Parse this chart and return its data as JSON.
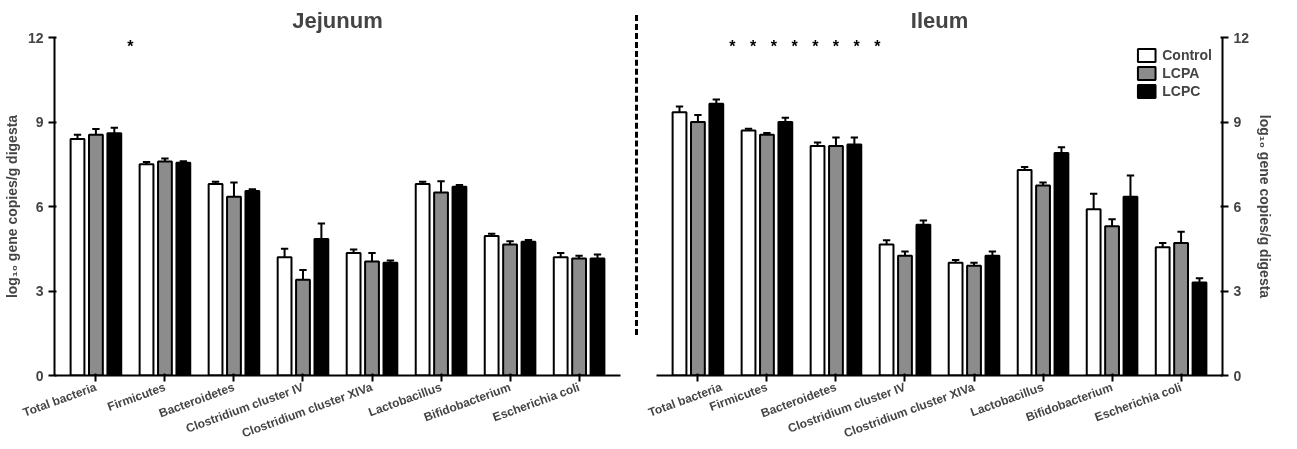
{
  "chart_data": [
    {
      "type": "bar",
      "title": "Jejunum",
      "ylabel": "log₁₀ gene copies/g digesta",
      "categories": [
        "Total bacteria",
        "Firmicutes",
        "Bacteroidetes",
        "Clostridium cluster IV",
        "Clostridium cluster XIVa",
        "Lactobacillus",
        "Bifidobacterium",
        "Escherichia coli"
      ],
      "series": [
        {
          "color": "#ffffff",
          "values": [
            8.4,
            7.5,
            6.8,
            4.2,
            4.35,
            6.8,
            4.95,
            4.2
          ],
          "errors": [
            0.15,
            0.08,
            0.08,
            0.3,
            0.12,
            0.08,
            0.08,
            0.15
          ]
        },
        {
          "color": "#8c8c8c",
          "values": [
            8.55,
            7.6,
            6.35,
            3.4,
            4.05,
            6.5,
            4.65,
            4.15
          ],
          "errors": [
            0.2,
            0.1,
            0.5,
            0.35,
            0.3,
            0.4,
            0.12,
            0.1
          ]
        },
        {
          "color": "#000000",
          "values": [
            8.6,
            7.55,
            6.55,
            4.85,
            4.0,
            6.7,
            4.75,
            4.15
          ],
          "errors": [
            0.2,
            0.06,
            0.06,
            0.55,
            0.08,
            0.06,
            0.06,
            0.15
          ]
        }
      ],
      "ylim": [
        0,
        12
      ],
      "yticks": [
        0,
        3,
        6,
        9,
        12
      ],
      "annotations": [
        "*"
      ]
    },
    {
      "type": "bar",
      "title": "Ileum",
      "y2label": "log₁₀ gene copies/g digesta",
      "categories": [
        "Total bacteria",
        "Firmicutes",
        "Bacteroidetes",
        "Clostridium cluster IV",
        "Clostridium cluster XIVa",
        "Lactobacillus",
        "Bifidobacterium",
        "Escherichia coli"
      ],
      "series": [
        {
          "name": "Control",
          "color": "#ffffff",
          "axis": "y2",
          "values": [
            9.35,
            8.7,
            8.15,
            4.65,
            4.0,
            7.3,
            5.9,
            4.55
          ],
          "errors": [
            0.2,
            0.06,
            0.12,
            0.15,
            0.1,
            0.1,
            0.55,
            0.15
          ]
        },
        {
          "name": "LCPA",
          "color": "#8c8c8c",
          "axis": "y2",
          "values": [
            9.0,
            8.55,
            8.15,
            4.25,
            3.9,
            6.75,
            5.3,
            4.7
          ],
          "errors": [
            0.25,
            0.06,
            0.3,
            0.15,
            0.1,
            0.1,
            0.25,
            0.4
          ]
        },
        {
          "name": "LCPC",
          "color": "#000000",
          "axis": "y2",
          "values": [
            9.65,
            9.0,
            8.2,
            5.35,
            4.25,
            7.9,
            6.35,
            3.3
          ],
          "errors": [
            0.15,
            0.15,
            0.25,
            0.15,
            0.15,
            0.2,
            0.75,
            0.15
          ]
        }
      ],
      "y2lim": [
        0,
        12
      ],
      "y2ticks": [
        0,
        3,
        6,
        9,
        12
      ],
      "legend": "top right",
      "annotations": [
        "*",
        "*",
        "*",
        "*",
        "*",
        "*",
        "*",
        "*"
      ]
    }
  ]
}
